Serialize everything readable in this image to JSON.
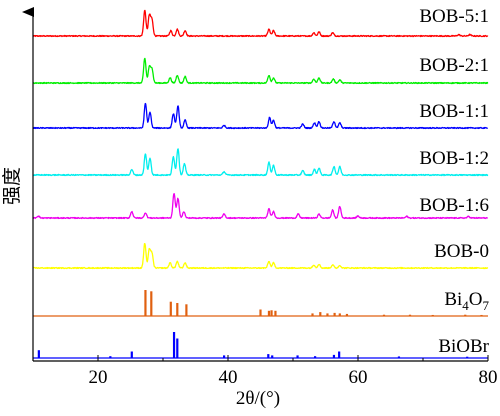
{
  "chart_data": {
    "type": "line",
    "xlabel": "2θ/(°)",
    "ylabel": "强度",
    "xlim": [
      10,
      80
    ],
    "x_ticks": [
      20,
      40,
      60,
      80
    ],
    "grid": false,
    "legend": "labels placed at right end of each trace",
    "series": [
      {
        "name": "BOB-5:1",
        "color": "#ff0000",
        "peaks": [
          [
            27.2,
            0.95
          ],
          [
            27.9,
            0.75
          ],
          [
            28.3,
            0.6
          ],
          [
            31.2,
            0.2
          ],
          [
            32.2,
            0.25
          ],
          [
            33.4,
            0.2
          ],
          [
            46.3,
            0.25
          ],
          [
            47.0,
            0.2
          ],
          [
            53.2,
            0.12
          ],
          [
            54.0,
            0.15
          ],
          [
            56.1,
            0.12
          ],
          [
            75.5,
            0.05
          ],
          [
            77.2,
            0.05
          ]
        ]
      },
      {
        "name": "BOB-2:1",
        "color": "#00ee00",
        "peaks": [
          [
            27.2,
            0.95
          ],
          [
            27.9,
            0.6
          ],
          [
            28.3,
            0.55
          ],
          [
            31.1,
            0.2
          ],
          [
            32.2,
            0.3
          ],
          [
            33.4,
            0.25
          ],
          [
            46.3,
            0.3
          ],
          [
            47.0,
            0.2
          ],
          [
            53.2,
            0.15
          ],
          [
            54.0,
            0.2
          ],
          [
            56.2,
            0.15
          ],
          [
            57.2,
            0.12
          ]
        ]
      },
      {
        "name": "BOB-1:1",
        "color": "#0000ff",
        "peaks": [
          [
            27.3,
            0.95
          ],
          [
            28.0,
            0.6
          ],
          [
            31.6,
            0.55
          ],
          [
            32.3,
            0.85
          ],
          [
            33.4,
            0.3
          ],
          [
            39.4,
            0.1
          ],
          [
            46.4,
            0.4
          ],
          [
            47.0,
            0.3
          ],
          [
            51.5,
            0.15
          ],
          [
            53.3,
            0.2
          ],
          [
            54.0,
            0.25
          ],
          [
            56.3,
            0.25
          ],
          [
            57.2,
            0.2
          ]
        ]
      },
      {
        "name": "BOB-1:2",
        "color": "#00eeee",
        "peaks": [
          [
            25.2,
            0.2
          ],
          [
            27.3,
            0.75
          ],
          [
            28.0,
            0.6
          ],
          [
            31.6,
            0.65
          ],
          [
            32.3,
            0.95
          ],
          [
            33.3,
            0.4
          ],
          [
            39.4,
            0.12
          ],
          [
            46.3,
            0.45
          ],
          [
            47.0,
            0.35
          ],
          [
            51.5,
            0.15
          ],
          [
            53.3,
            0.2
          ],
          [
            54.0,
            0.25
          ],
          [
            56.3,
            0.3
          ],
          [
            57.2,
            0.3
          ]
        ]
      },
      {
        "name": "BOB-1:6",
        "color": "#ee00ee",
        "peaks": [
          [
            10.8,
            0.08
          ],
          [
            25.2,
            0.25
          ],
          [
            27.3,
            0.2
          ],
          [
            31.7,
            0.95
          ],
          [
            32.3,
            0.75
          ],
          [
            33.2,
            0.25
          ],
          [
            39.4,
            0.15
          ],
          [
            46.3,
            0.35
          ],
          [
            47.0,
            0.25
          ],
          [
            50.8,
            0.15
          ],
          [
            54.0,
            0.15
          ],
          [
            56.1,
            0.3
          ],
          [
            57.2,
            0.45
          ],
          [
            60.0,
            0.08
          ],
          [
            67.5,
            0.06
          ],
          [
            77.0,
            0.06
          ]
        ]
      },
      {
        "name": "BOB-0",
        "color": "#ffff00",
        "peaks": [
          [
            27.2,
            0.95
          ],
          [
            27.9,
            0.7
          ],
          [
            28.3,
            0.55
          ],
          [
            31.1,
            0.2
          ],
          [
            32.2,
            0.25
          ],
          [
            33.4,
            0.2
          ],
          [
            46.3,
            0.25
          ],
          [
            47.0,
            0.2
          ],
          [
            53.2,
            0.12
          ],
          [
            54.0,
            0.15
          ],
          [
            56.1,
            0.12
          ],
          [
            57.2,
            0.1
          ]
        ]
      },
      {
        "name": "Bi4O7",
        "label_main": "Bi",
        "label_sub1": "4",
        "label_mid": "O",
        "label_sub2": "7",
        "color": "#e06010",
        "sticks": [
          [
            27.3,
            1.0
          ],
          [
            28.2,
            0.95
          ],
          [
            31.2,
            0.55
          ],
          [
            32.2,
            0.5
          ],
          [
            33.6,
            0.45
          ],
          [
            45.0,
            0.25
          ],
          [
            46.3,
            0.2
          ],
          [
            46.7,
            0.22
          ],
          [
            47.3,
            0.2
          ],
          [
            53.0,
            0.1
          ],
          [
            54.2,
            0.15
          ],
          [
            55.3,
            0.1
          ],
          [
            56.4,
            0.12
          ],
          [
            57.2,
            0.1
          ],
          [
            58.3,
            0.08
          ],
          [
            64.0,
            0.05
          ],
          [
            68.0,
            0.05
          ],
          [
            71.5,
            0.04
          ],
          [
            76.5,
            0.05
          ],
          [
            79.0,
            0.04
          ]
        ]
      },
      {
        "name": "BiOBr",
        "color": "#0000ff",
        "sticks": [
          [
            10.9,
            0.3
          ],
          [
            21.9,
            0.07
          ],
          [
            25.2,
            0.25
          ],
          [
            31.7,
            1.0
          ],
          [
            32.2,
            0.75
          ],
          [
            39.4,
            0.1
          ],
          [
            46.2,
            0.15
          ],
          [
            46.8,
            0.1
          ],
          [
            50.7,
            0.1
          ],
          [
            53.4,
            0.07
          ],
          [
            56.3,
            0.12
          ],
          [
            57.1,
            0.25
          ],
          [
            66.3,
            0.06
          ],
          [
            76.8,
            0.05
          ]
        ]
      }
    ]
  }
}
